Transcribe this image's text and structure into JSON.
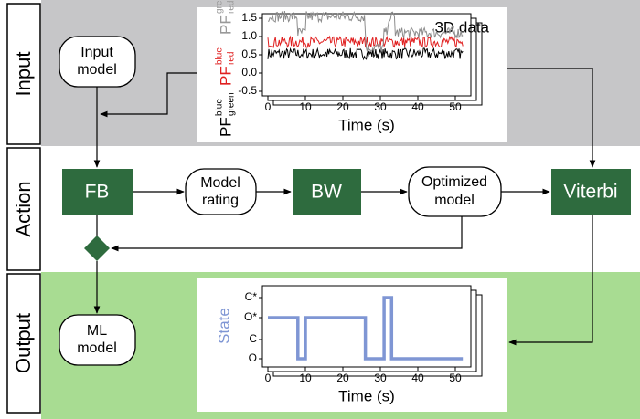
{
  "bands": {
    "input": "Input",
    "action": "Action",
    "output": "Output"
  },
  "nodes": {
    "input_model": [
      "Input",
      "model"
    ],
    "fb": "FB",
    "model_rating": [
      "Model",
      "rating"
    ],
    "bw": "BW",
    "optimized_model": [
      "Optimized",
      "model"
    ],
    "viterbi": "Viterbi",
    "ml_model": [
      "ML",
      "model"
    ]
  },
  "data_panel": {
    "label": "3D data",
    "xlabel": "Time (s)",
    "xticks": [
      "0",
      "10",
      "20",
      "30",
      "40",
      "50"
    ],
    "yticks": [
      "1.5",
      "1.0",
      "0.5",
      "0.0",
      "-0.5"
    ],
    "ylabel": [
      {
        "base": "PF",
        "sup": "blue",
        "sub": "green"
      },
      {
        "base": "PF",
        "sup": "blue",
        "sub": "red"
      },
      {
        "base": "PF",
        "sup": "green",
        "sub": "red"
      }
    ]
  },
  "state_panel": {
    "ylabel": "State",
    "xlabel": "Time (s)",
    "xticks": [
      "0",
      "10",
      "20",
      "30",
      "40",
      "50"
    ],
    "yticks": [
      "C*",
      "O*",
      "C",
      "O"
    ]
  }
}
